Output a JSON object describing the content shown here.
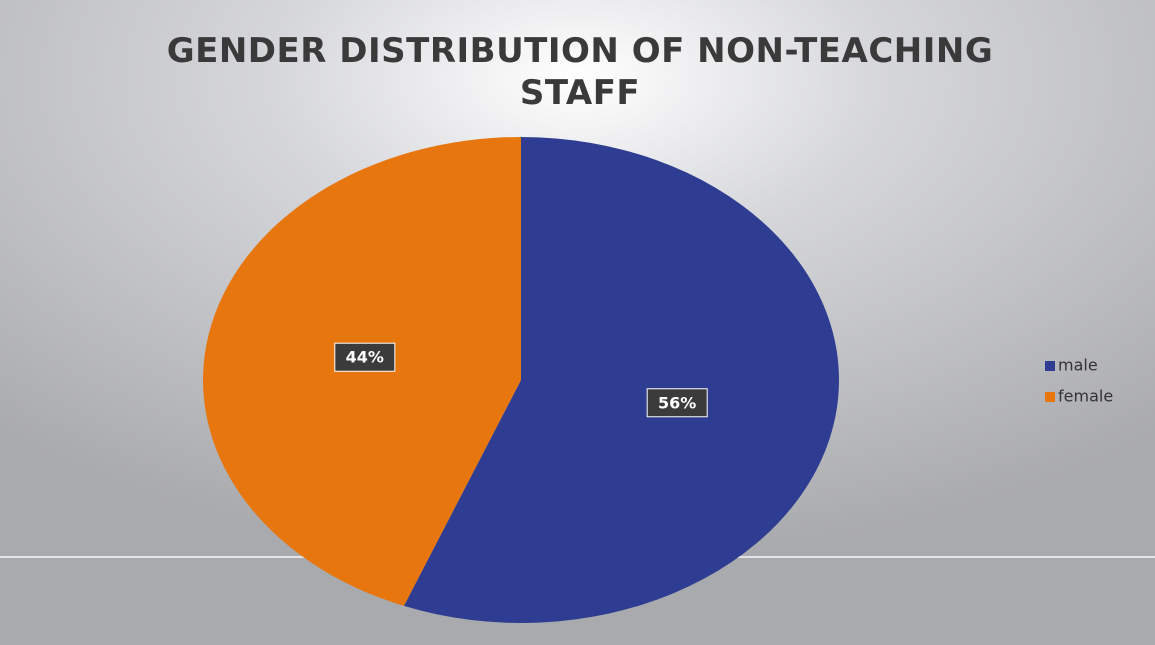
{
  "chart_data": {
    "type": "pie",
    "title": "GENDER DISTRIBUTION OF NON-TEACHING STAFF",
    "categories": [
      "male",
      "female"
    ],
    "values": [
      56,
      44
    ],
    "value_labels": [
      "56%",
      "44%"
    ],
    "colors": [
      "#2e3d91",
      "#e8760f"
    ],
    "legend": "right"
  }
}
